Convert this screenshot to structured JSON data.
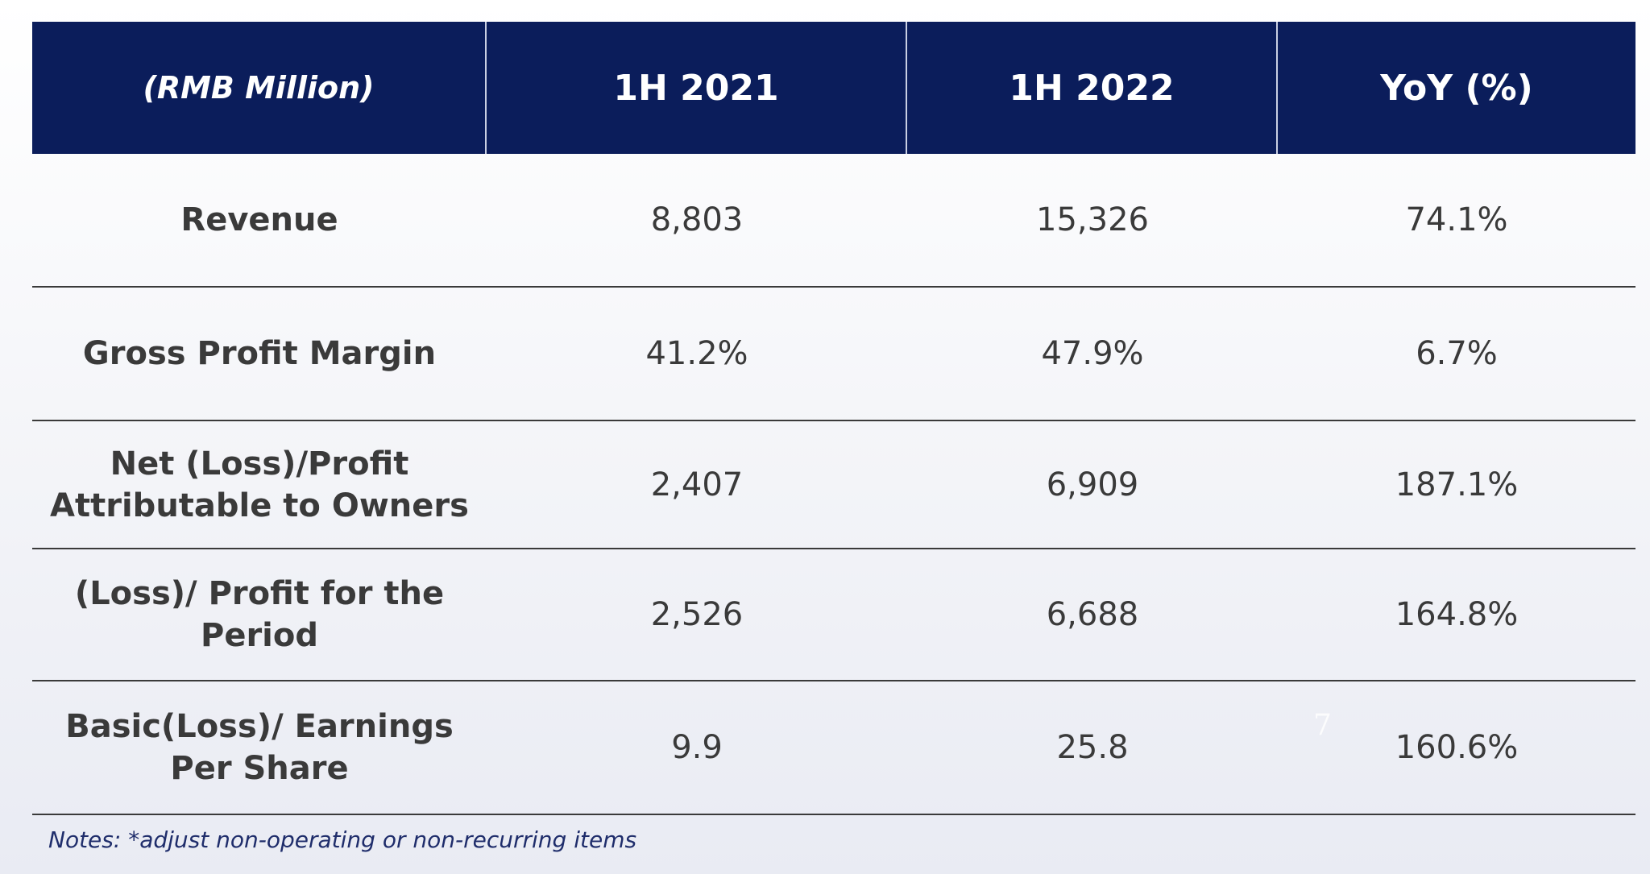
{
  "table": {
    "header": {
      "unit": "(RMB Million)",
      "col1": "1H 2021",
      "col2": "1H 2022",
      "col3": "YoY (%)"
    },
    "rows": [
      {
        "label": "Revenue",
        "v2021": "8,803",
        "v2022": "15,326",
        "yoy": "74.1%"
      },
      {
        "label": "Gross Profit Margin",
        "v2021": "41.2%",
        "v2022": "47.9%",
        "yoy": "6.7%"
      },
      {
        "label": "Net (Loss)/Profit Attributable to Owners",
        "v2021": "2,407",
        "v2022": "6,909",
        "yoy": "187.1%"
      },
      {
        "label": "(Loss)/ Profit for the Period",
        "v2021": "2,526",
        "v2022": "6,688",
        "yoy": "164.8%"
      },
      {
        "label": "Basic(Loss)/ Earnings Per Share",
        "v2021": "9.9",
        "v2022": "25.8",
        "yoy": "160.6%"
      }
    ]
  },
  "notes": "Notes: *adjust non-operating or non-recurring items",
  "page_number": "7"
}
